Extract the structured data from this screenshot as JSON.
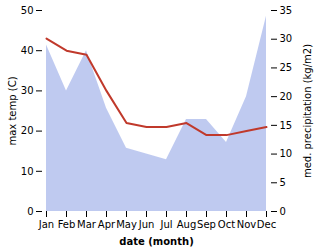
{
  "chart_data": {
    "type": "line",
    "xlabel": "date (month)",
    "ylabel": "max temp (C)",
    "y2label": "med. precipitation (kg/m2)",
    "categories": [
      "Jan",
      "Feb",
      "Mar",
      "Apr",
      "May",
      "Jun",
      "Jul",
      "Aug",
      "Sep",
      "Oct",
      "Nov",
      "Dec"
    ],
    "series": [
      {
        "type": "area",
        "axis": "y2",
        "color": "#b8c4ee",
        "values": [
          29,
          21,
          28,
          18,
          11,
          10,
          9,
          16,
          16,
          12,
          20,
          34
        ]
      },
      {
        "type": "line",
        "color": "#c0392b",
        "values": [
          43,
          40,
          39,
          30,
          22,
          21,
          21,
          22,
          19,
          19,
          20,
          21
        ]
      }
    ],
    "ylim": [
      0,
      50
    ],
    "yticks": [
      0,
      10,
      20,
      30,
      40,
      50
    ],
    "y2lim": [
      0,
      35
    ],
    "y2ticks": [
      0,
      5,
      10,
      15,
      20,
      25,
      30,
      35
    ],
    "grid": false
  }
}
